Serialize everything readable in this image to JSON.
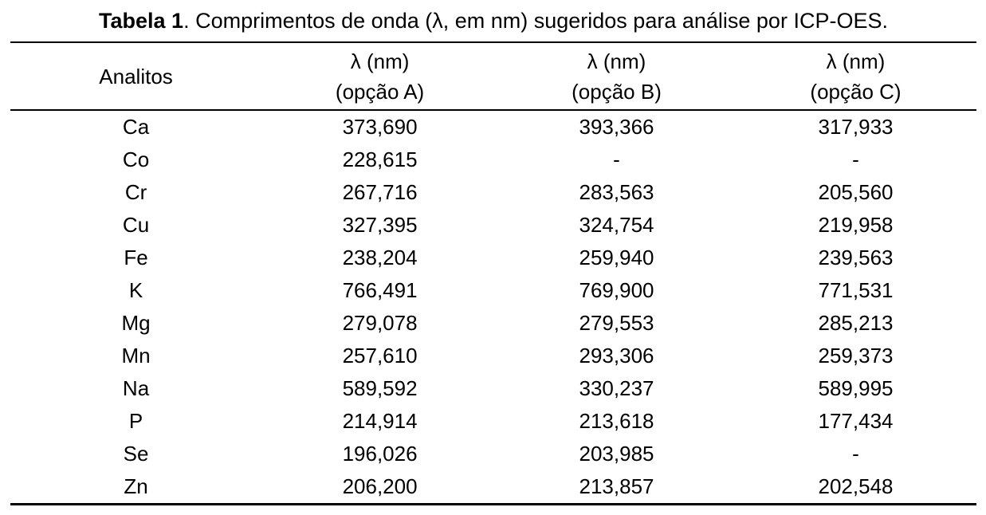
{
  "title": {
    "bold": "Tabela 1",
    "rest": ". Comprimentos de onda (λ, em nm) sugeridos para análise por ICP-OES."
  },
  "table": {
    "header": {
      "analytes_label": "Analitos",
      "col_a_line1": "λ (nm)",
      "col_a_line2": "(opção A)",
      "col_b_line1": "λ (nm)",
      "col_b_line2": "(opção B)",
      "col_c_line1": "λ (nm)",
      "col_c_line2": "(opção C)"
    },
    "rows": [
      {
        "analito": "Ca",
        "opcao_a": "373,690",
        "opcao_b": "393,366",
        "opcao_c": "317,933"
      },
      {
        "analito": "Co",
        "opcao_a": "228,615",
        "opcao_b": "-",
        "opcao_c": "-"
      },
      {
        "analito": "Cr",
        "opcao_a": "267,716",
        "opcao_b": "283,563",
        "opcao_c": "205,560"
      },
      {
        "analito": "Cu",
        "opcao_a": "327,395",
        "opcao_b": "324,754",
        "opcao_c": "219,958"
      },
      {
        "analito": "Fe",
        "opcao_a": "238,204",
        "opcao_b": "259,940",
        "opcao_c": "239,563"
      },
      {
        "analito": "K",
        "opcao_a": "766,491",
        "opcao_b": "769,900",
        "opcao_c": "771,531"
      },
      {
        "analito": "Mg",
        "opcao_a": "279,078",
        "opcao_b": "279,553",
        "opcao_c": "285,213"
      },
      {
        "analito": "Mn",
        "opcao_a": "257,610",
        "opcao_b": "293,306",
        "opcao_c": "259,373"
      },
      {
        "analito": "Na",
        "opcao_a": "589,592",
        "opcao_b": "330,237",
        "opcao_c": "589,995"
      },
      {
        "analito": "P",
        "opcao_a": "214,914",
        "opcao_b": "213,618",
        "opcao_c": "177,434"
      },
      {
        "analito": "Se",
        "opcao_a": "196,026",
        "opcao_b": "203,985",
        "opcao_c": "-"
      },
      {
        "analito": "Zn",
        "opcao_a": "206,200",
        "opcao_b": "213,857",
        "opcao_c": "202,548"
      }
    ]
  }
}
